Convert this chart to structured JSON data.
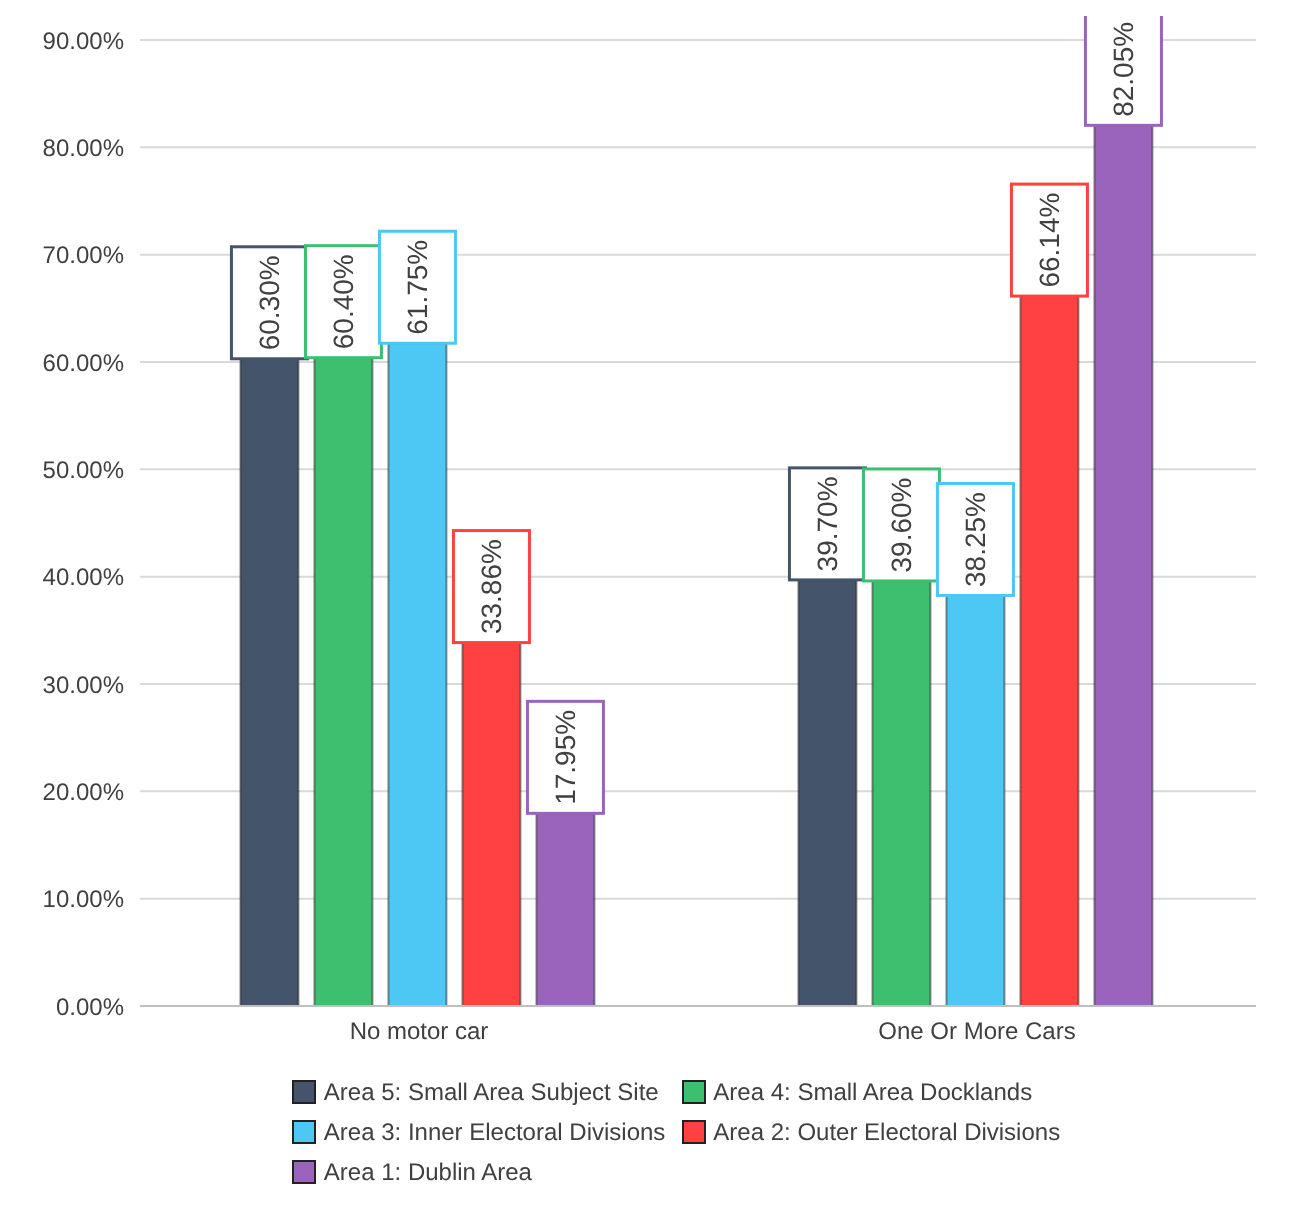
{
  "chart_data": {
    "type": "bar",
    "categories": [
      "No motor car",
      "One Or More Cars"
    ],
    "series": [
      {
        "name": "Area 5: Small Area Subject Site",
        "color": "#44546a",
        "values": [
          60.3,
          39.7
        ],
        "value_labels": [
          "60.30%",
          "39.70%"
        ]
      },
      {
        "name": "Area 4: Small Area Docklands",
        "color": "#3cbf6e",
        "values": [
          60.4,
          39.6
        ],
        "value_labels": [
          "60.40%",
          "39.60%"
        ]
      },
      {
        "name": "Area 3: Inner Electoral Divisions",
        "color": "#4dc8f5",
        "values": [
          61.75,
          38.25
        ],
        "value_labels": [
          "61.75%",
          "38.25%"
        ]
      },
      {
        "name": "Area 2: Outer Electoral Divisions",
        "color": "#ff4141",
        "values": [
          33.86,
          66.14
        ],
        "value_labels": [
          "33.86%",
          "66.14%"
        ]
      },
      {
        "name": "Area 1: Dublin Area",
        "color": "#9a64bd",
        "values": [
          17.95,
          82.05
        ],
        "value_labels": [
          "17.95%",
          "82.05%"
        ]
      }
    ],
    "ylim": [
      0,
      90
    ],
    "yticks": [
      {
        "value": 0,
        "label": "0.00%"
      },
      {
        "value": 10,
        "label": "10.00%"
      },
      {
        "value": 20,
        "label": "20.00%"
      },
      {
        "value": 30,
        "label": "30.00%"
      },
      {
        "value": 40,
        "label": "40.00%"
      },
      {
        "value": 50,
        "label": "50.00%"
      },
      {
        "value": 60,
        "label": "60.00%"
      },
      {
        "value": 70,
        "label": "70.00%"
      },
      {
        "value": 80,
        "label": "80.00%"
      },
      {
        "value": 90,
        "label": "90.00%"
      }
    ],
    "grid": "y",
    "legend": "bottom"
  }
}
